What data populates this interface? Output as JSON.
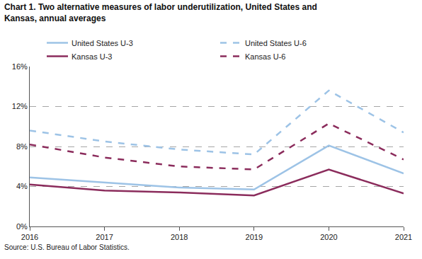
{
  "chart_data": {
    "type": "line",
    "title": "Chart 1. Two alternative measures of labor underutilization, United States and Kansas, annual averages",
    "source": "Source: U.S. Bureau of Labor Statistics.",
    "x": [
      2016,
      2017,
      2018,
      2019,
      2020,
      2021
    ],
    "series": [
      {
        "name": "United States U-3",
        "color": "#9dc3e6",
        "line_style": "solid",
        "values": [
          4.9,
          4.4,
          3.9,
          3.7,
          8.1,
          5.3
        ]
      },
      {
        "name": "United States U-6",
        "color": "#9dc3e6",
        "line_style": "dash",
        "values": [
          9.6,
          8.5,
          7.7,
          7.2,
          13.6,
          9.4
        ]
      },
      {
        "name": "Kansas U-3",
        "color": "#8b2c5c",
        "line_style": "solid",
        "values": [
          4.2,
          3.6,
          3.4,
          3.1,
          5.7,
          3.3
        ]
      },
      {
        "name": "Kansas U-6",
        "color": "#8b2c5c",
        "line_style": "dash",
        "values": [
          8.2,
          6.9,
          6.0,
          5.7,
          10.3,
          6.7
        ]
      }
    ],
    "xlim": [
      2016,
      2021
    ],
    "xticks": [
      2016,
      2017,
      2018,
      2019,
      2020,
      2021
    ],
    "ylim": [
      0,
      16
    ],
    "yticks": [
      {
        "value": 0,
        "label": "0%"
      },
      {
        "value": 4,
        "label": "4%"
      },
      {
        "value": 8,
        "label": "8%"
      },
      {
        "value": 12,
        "label": "12%"
      },
      {
        "value": 16,
        "label": "16%"
      }
    ],
    "grid": true,
    "legend": "top"
  }
}
